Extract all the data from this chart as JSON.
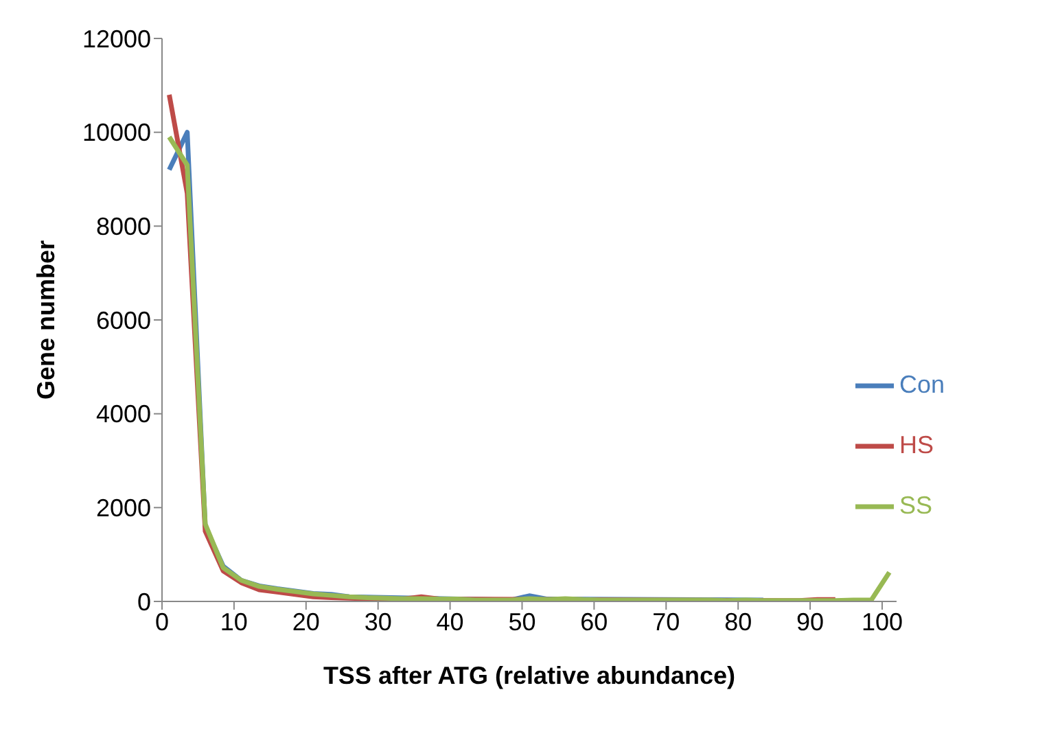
{
  "chart_data": {
    "type": "line",
    "xlabel": "TSS after ATG (relative abundance)",
    "ylabel": "Gene number",
    "x": [
      1,
      3.5,
      6,
      8.5,
      11,
      13.5,
      16,
      18.5,
      21,
      23.5,
      26,
      28.5,
      31,
      33.5,
      36,
      38.5,
      41,
      43.5,
      46,
      48.5,
      51,
      53.5,
      56,
      58.5,
      61,
      63.5,
      66,
      68.5,
      71,
      73.5,
      76,
      78.5,
      81,
      83.5,
      86,
      88.5,
      91,
      93.5,
      96,
      98.5,
      101
    ],
    "series": [
      {
        "name": "Con",
        "color": "#4a7ebb",
        "values": [
          9200,
          10000,
          1600,
          750,
          450,
          330,
          270,
          220,
          170,
          150,
          100,
          null,
          null,
          null,
          null,
          null,
          null,
          null,
          null,
          30,
          120,
          50,
          null,
          null,
          null,
          null,
          null,
          null,
          null,
          null,
          null,
          null,
          null,
          30,
          null,
          null,
          null,
          null,
          null,
          null,
          null
        ]
      },
      {
        "name": "HS",
        "color": "#be4b48",
        "values": [
          10800,
          8700,
          1500,
          650,
          400,
          250,
          200,
          150,
          100,
          80,
          70,
          60,
          50,
          50,
          100,
          50,
          null,
          null,
          null,
          null,
          null,
          null,
          null,
          null,
          null,
          null,
          null,
          null,
          null,
          null,
          null,
          null,
          null,
          null,
          20,
          20,
          40,
          40,
          null,
          null,
          null
        ]
      },
      {
        "name": "SS",
        "color": "#98b954",
        "values": [
          9900,
          9300,
          1650,
          720,
          450,
          320,
          260,
          210,
          160,
          130,
          100,
          80,
          70,
          60,
          60,
          50,
          50,
          30,
          30,
          30,
          60,
          40,
          60,
          40,
          30,
          30,
          30,
          30,
          30,
          30,
          30,
          20,
          30,
          20,
          20,
          20,
          20,
          20,
          30,
          30,
          620
        ]
      }
    ],
    "xlim": [
      0,
      102
    ],
    "xticks": [
      0,
      10,
      20,
      30,
      40,
      50,
      60,
      70,
      80,
      90,
      100
    ],
    "ylim": [
      0,
      12000
    ],
    "yticks": [
      0,
      2000,
      4000,
      6000,
      8000,
      10000,
      12000
    ],
    "legend": "right",
    "grid": false,
    "marker": "none",
    "line_style": "solid"
  }
}
